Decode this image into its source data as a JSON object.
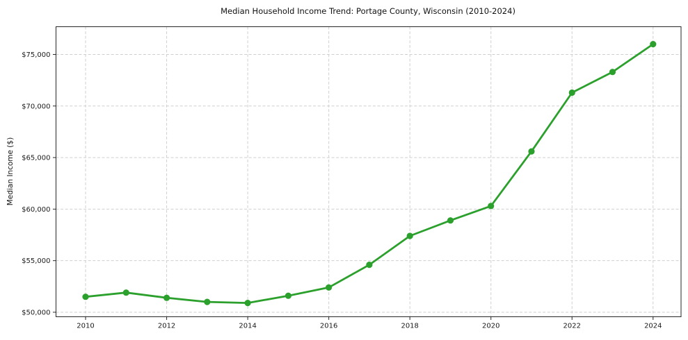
{
  "chart_data": {
    "type": "line",
    "title": "Median Household Income Trend: Portage County, Wisconsin (2010-2024)",
    "xlabel": "",
    "ylabel": "Median Income ($)",
    "x": [
      2010,
      2011,
      2012,
      2013,
      2014,
      2015,
      2016,
      2017,
      2018,
      2019,
      2020,
      2021,
      2022,
      2023,
      2024
    ],
    "series": [
      {
        "name": "Median Household Income",
        "values": [
          51500,
          51900,
          51400,
          51000,
          50900,
          51600,
          52400,
          54600,
          57400,
          58900,
          60300,
          65600,
          71300,
          73300,
          76000
        ]
      }
    ],
    "xlim": [
      2009.27,
      2024.69
    ],
    "ylim": [
      49560,
      77690
    ],
    "xticks": [
      {
        "value": 2010,
        "label": "2010"
      },
      {
        "value": 2012,
        "label": "2012"
      },
      {
        "value": 2014,
        "label": "2014"
      },
      {
        "value": 2016,
        "label": "2016"
      },
      {
        "value": 2018,
        "label": "2018"
      },
      {
        "value": 2020,
        "label": "2020"
      },
      {
        "value": 2022,
        "label": "2022"
      },
      {
        "value": 2024,
        "label": "2024"
      }
    ],
    "yticks": [
      {
        "value": 50000,
        "label": "$50,000"
      },
      {
        "value": 55000,
        "label": "$55,000"
      },
      {
        "value": 60000,
        "label": "$60,000"
      },
      {
        "value": 65000,
        "label": "$65,000"
      },
      {
        "value": 70000,
        "label": "$70,000"
      },
      {
        "value": 75000,
        "label": "$75,000"
      }
    ],
    "grid": true,
    "legend": null
  },
  "colors": {
    "line": "#2ca02c",
    "marker": "#2ca02c",
    "grid": "#cfcfcf",
    "spine": "#262626",
    "tick": "#262626",
    "text": "#1a1a1a",
    "background": "#ffffff"
  }
}
